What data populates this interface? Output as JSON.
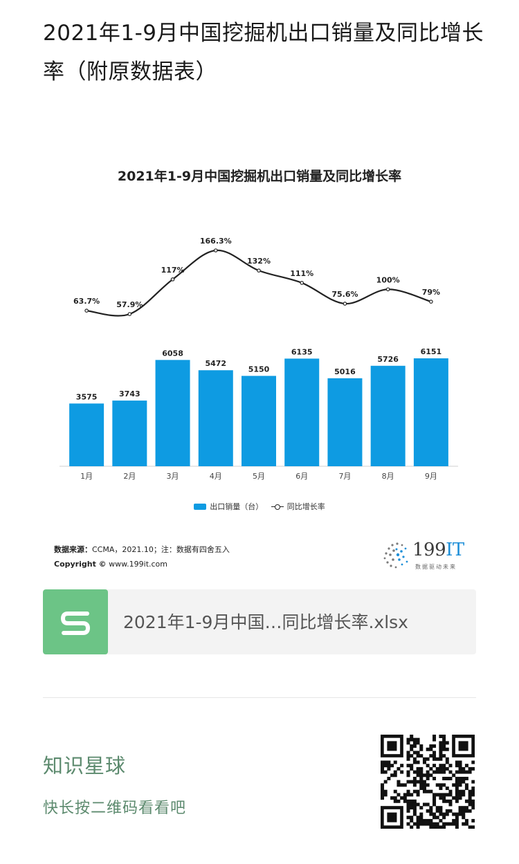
{
  "article": {
    "title": "2021年1-9月中国挖掘机出口销量及同比增长率（附原数据表）"
  },
  "chart_data": {
    "type": "bar",
    "title": "2021年1-9月中国挖掘机出口销量及同比增长率",
    "categories": [
      "1月",
      "2月",
      "3月",
      "4月",
      "5月",
      "6月",
      "7月",
      "8月",
      "9月"
    ],
    "series": [
      {
        "name": "出口销量（台）",
        "type": "bar",
        "values": [
          3575,
          3743,
          6058,
          5472,
          5150,
          6135,
          5016,
          5726,
          6151
        ],
        "labels": [
          "3575",
          "3743",
          "6058",
          "5472",
          "5150",
          "6135",
          "5016",
          "5726",
          "6151"
        ],
        "color": "#0e9be2"
      },
      {
        "name": "同比增长率",
        "type": "line",
        "values": [
          63.7,
          57.9,
          117,
          166.3,
          132,
          111,
          75.6,
          100,
          79
        ],
        "labels": [
          "63.7%",
          "57.9%",
          "117%",
          "166.3%",
          "132%",
          "111%",
          "75.6%",
          "100%",
          "79%"
        ],
        "color": "#222222"
      }
    ],
    "legend_position": "bottom",
    "grid": false
  },
  "footer": {
    "source_label": "数据来源：",
    "source_text": "CCMA，2021.10；注：数据有四舍五入",
    "copyright_label": "Copyright ©",
    "copyright_text": " www.199it.com"
  },
  "brand": {
    "name_digits": "199",
    "name_suffix": "IT",
    "slogan": "数据驱动未来",
    "accent_color": "#1e8fd8"
  },
  "attachment": {
    "file_name": "2021年1-9月中国…同比增长率.xlsx",
    "icon": "spreadsheet-s-icon",
    "icon_color": "#6cc486"
  },
  "promo": {
    "title": "知识星球",
    "subtitle": "快长按二维码看看吧",
    "text_color": "#5c8a6e"
  }
}
